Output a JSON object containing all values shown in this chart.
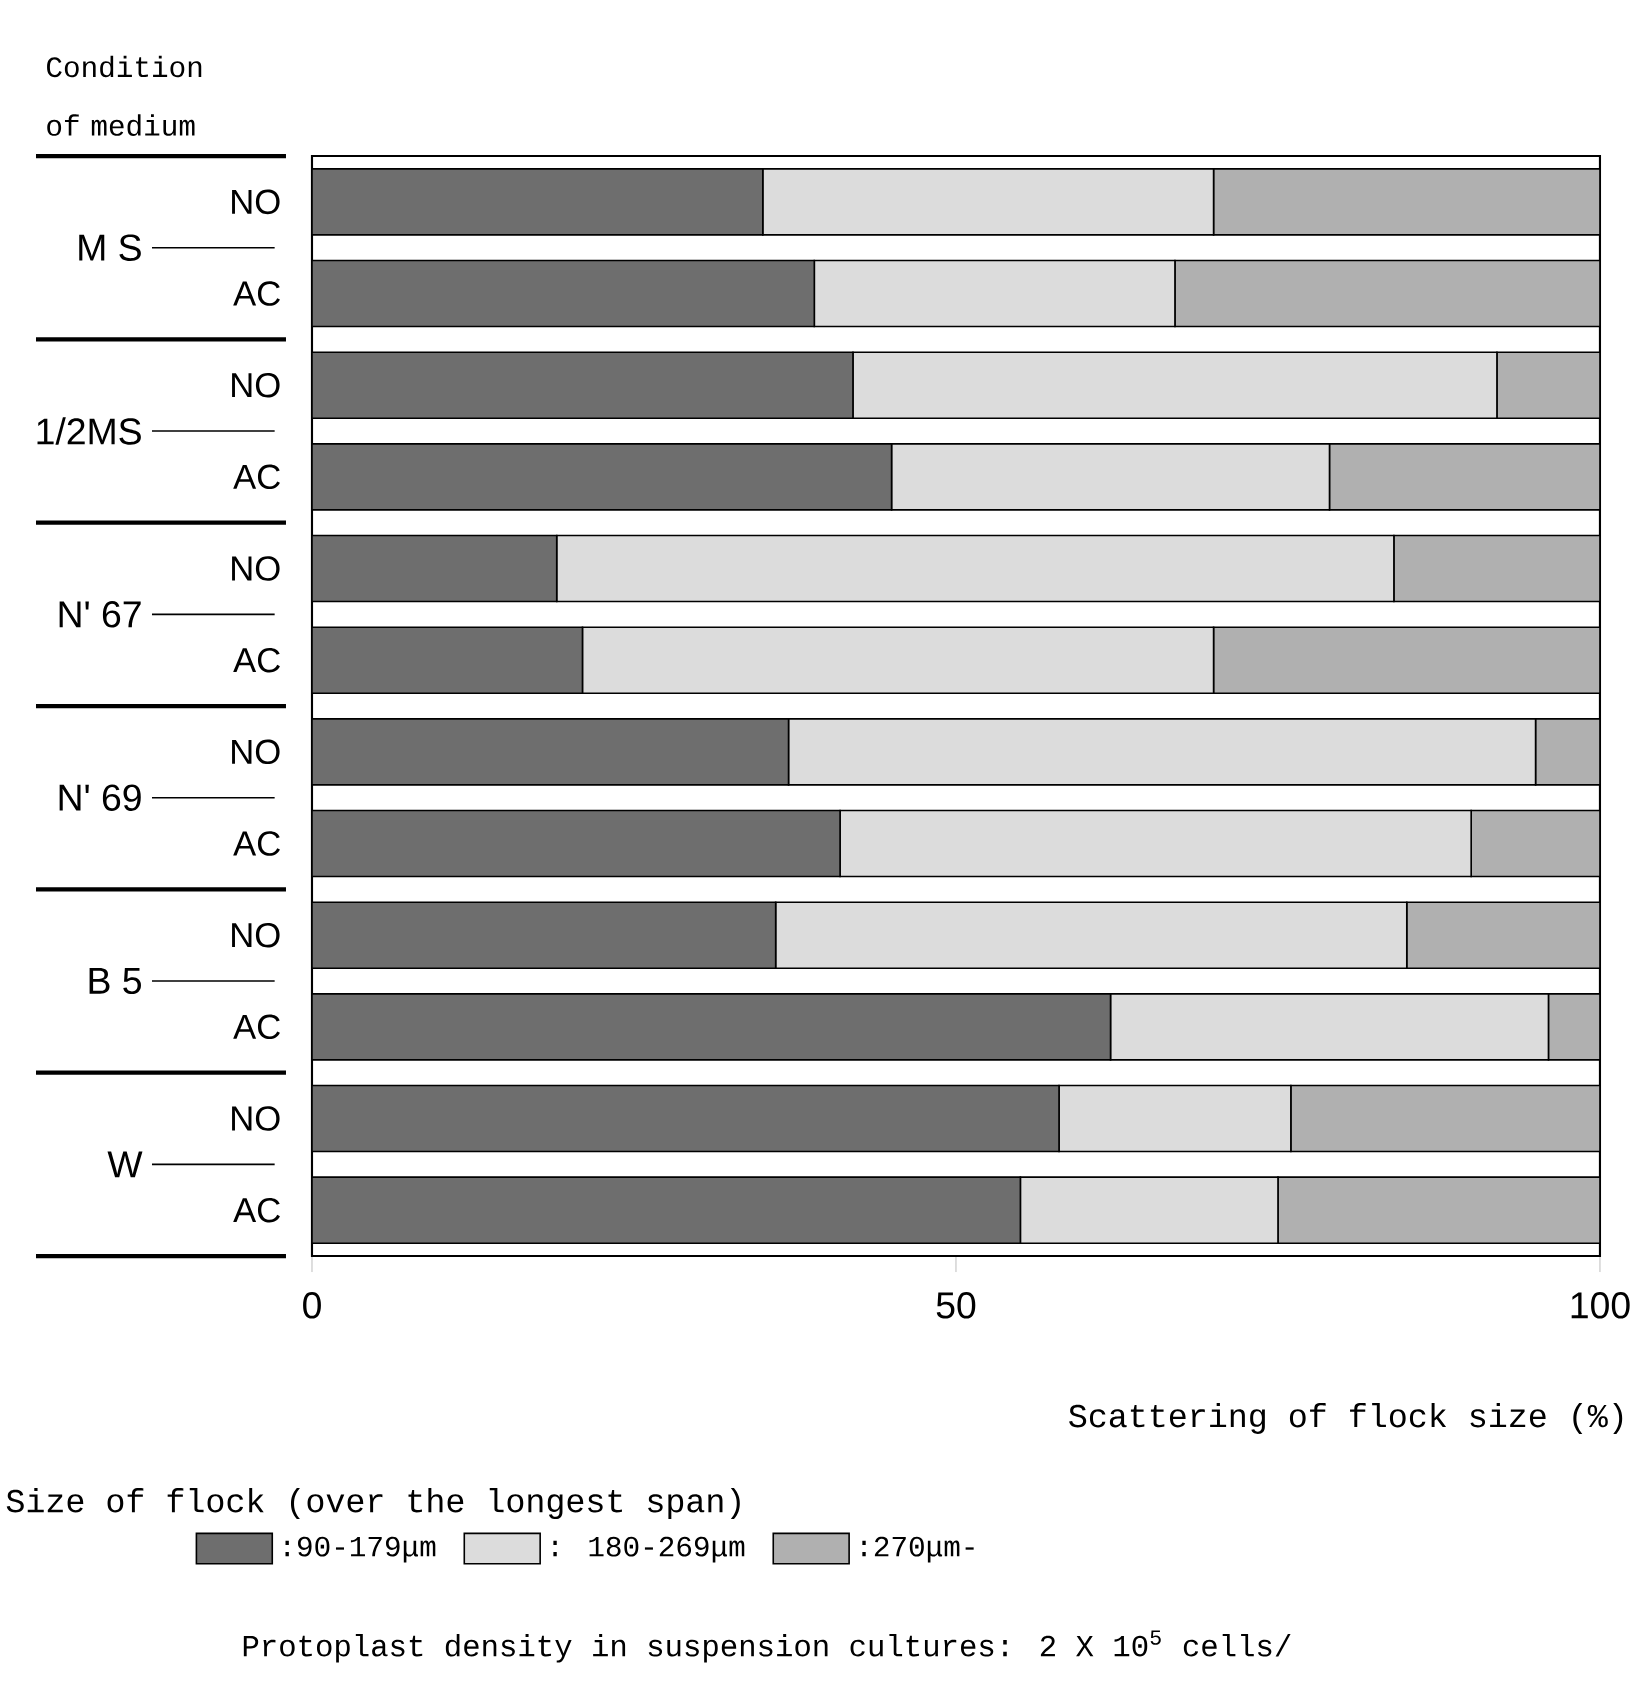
{
  "chart_data": {
    "type": "bar",
    "orientation": "horizontal",
    "stacked": true,
    "ylabel": "Condition of medium",
    "xlabel": "Scattering of flock size (%)",
    "legend_title": "Size of flock (over the longest span)",
    "categories": [
      "NO",
      "AC",
      "NO",
      "AC",
      "NO",
      "AC",
      "NO",
      "AC",
      "NO",
      "AC",
      "NO",
      "AC"
    ],
    "series": [
      {
        "name": ":90-179μm",
        "color": "#6e6e6e",
        "values": [
          35,
          39,
          42,
          45,
          19,
          21,
          37,
          41,
          36,
          62,
          58,
          55
        ]
      },
      {
        "name": ": 180-269μm",
        "color": "#dcdcdc",
        "values": [
          35,
          28,
          50,
          34,
          65,
          49,
          58,
          49,
          49,
          34,
          18,
          20
        ]
      },
      {
        "name": ":270μm-",
        "color": "#b0b0b0",
        "values": [
          30,
          33,
          8,
          21,
          16,
          30,
          5,
          10,
          15,
          4,
          24,
          25
        ]
      }
    ],
    "xlim": [
      0,
      100
    ],
    "xticks": [
      0,
      50,
      100
    ],
    "legend": "bottom",
    "annotations": [
      "M S",
      "1/2MS",
      "N' 67",
      "N' 69",
      "B 5",
      "W",
      "Protoplast density in suspension cultures: 2 X 10$^{5}$ cells/"
    ]
  }
}
